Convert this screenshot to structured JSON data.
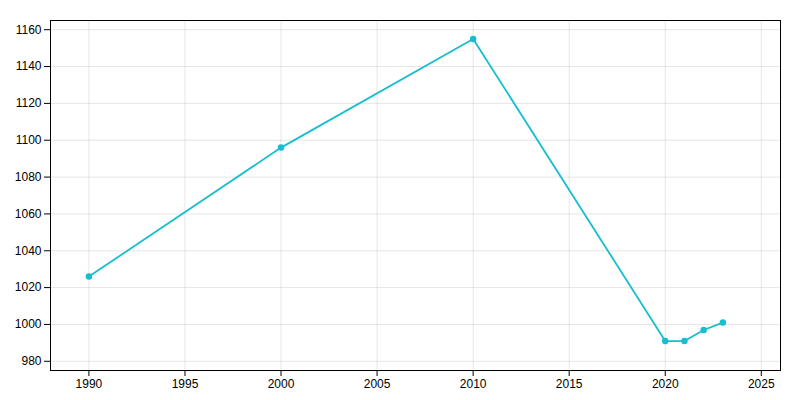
{
  "chart_data": {
    "type": "line",
    "x": [
      1990,
      2000,
      2010,
      2020,
      2021,
      2022,
      2023
    ],
    "values": [
      1026,
      1096,
      1155,
      991,
      991,
      997,
      1001
    ],
    "color": "#17becf",
    "marker": "circle",
    "xlim": [
      1988,
      2026
    ],
    "ylim": [
      975,
      1165
    ],
    "xticks": [
      1990,
      1995,
      2000,
      2005,
      2010,
      2015,
      2020,
      2025
    ],
    "yticks": [
      980,
      1000,
      1020,
      1040,
      1060,
      1080,
      1100,
      1120,
      1140,
      1160
    ],
    "grid": true
  }
}
